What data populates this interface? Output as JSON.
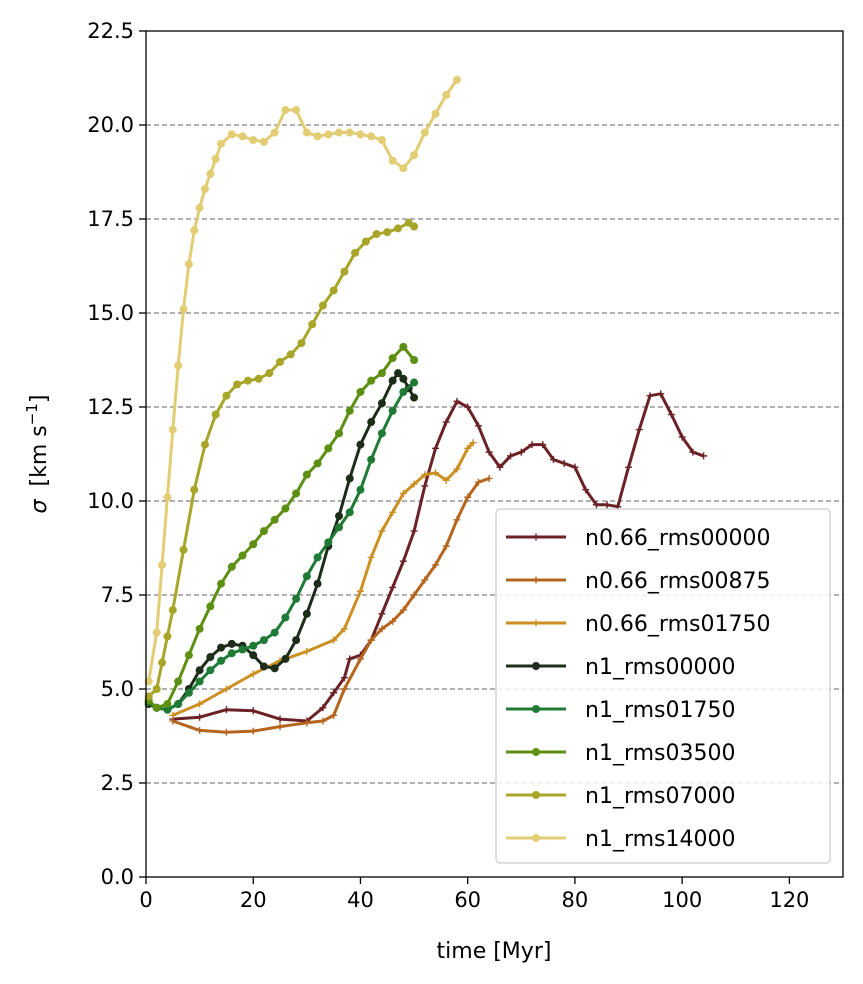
{
  "chart_data": {
    "type": "line",
    "xlabel": "time [Myr]",
    "ylabel_symbol": "σ",
    "ylabel_units": "[km s",
    "ylabel_exp": "−1",
    "ylabel_close": "]",
    "xlim": [
      0,
      130
    ],
    "ylim": [
      0,
      22.5
    ],
    "xticks": [
      0,
      20,
      40,
      60,
      80,
      100,
      120
    ],
    "yticks": [
      0.0,
      2.5,
      5.0,
      7.5,
      10.0,
      12.5,
      15.0,
      17.5,
      20.0,
      22.5
    ],
    "xtick_labels": [
      "0",
      "20",
      "40",
      "60",
      "80",
      "100",
      "120"
    ],
    "ytick_labels": [
      "0.0",
      "2.5",
      "5.0",
      "7.5",
      "10.0",
      "12.5",
      "15.0",
      "17.5",
      "20.0",
      "22.5"
    ],
    "grid": {
      "axis": "y",
      "style": "dashed",
      "color": "#808080"
    },
    "legend_position": "lower right",
    "series": [
      {
        "name": "n0.66_rms00000",
        "color": "#6b2226",
        "marker": "plus",
        "points": [
          [
            5,
            4.2
          ],
          [
            10,
            4.25
          ],
          [
            15,
            4.45
          ],
          [
            20,
            4.42
          ],
          [
            25,
            4.2
          ],
          [
            30,
            4.15
          ],
          [
            33,
            4.5
          ],
          [
            35,
            4.9
          ],
          [
            37,
            5.3
          ],
          [
            38,
            5.8
          ],
          [
            40,
            5.9
          ],
          [
            42,
            6.3
          ],
          [
            44,
            7.0
          ],
          [
            46,
            7.7
          ],
          [
            48,
            8.4
          ],
          [
            50,
            9.2
          ],
          [
            52,
            10.4
          ],
          [
            54,
            11.4
          ],
          [
            56,
            12.1
          ],
          [
            58,
            12.65
          ],
          [
            60,
            12.5
          ],
          [
            62,
            12.0
          ],
          [
            64,
            11.3
          ],
          [
            66,
            10.9
          ],
          [
            68,
            11.2
          ],
          [
            70,
            11.3
          ],
          [
            72,
            11.5
          ],
          [
            74,
            11.5
          ],
          [
            76,
            11.1
          ],
          [
            78,
            11.0
          ],
          [
            80,
            10.9
          ],
          [
            82,
            10.3
          ],
          [
            84,
            9.9
          ],
          [
            86,
            9.9
          ],
          [
            88,
            9.85
          ],
          [
            90,
            10.9
          ],
          [
            92,
            11.9
          ],
          [
            94,
            12.8
          ],
          [
            96,
            12.85
          ],
          [
            98,
            12.3
          ],
          [
            100,
            11.7
          ],
          [
            102,
            11.3
          ],
          [
            104,
            11.2
          ]
        ]
      },
      {
        "name": "n0.66_rms00875",
        "color": "#b5651d",
        "marker": "plus",
        "points": [
          [
            5,
            4.15
          ],
          [
            10,
            3.9
          ],
          [
            15,
            3.85
          ],
          [
            20,
            3.88
          ],
          [
            25,
            4.0
          ],
          [
            30,
            4.1
          ],
          [
            33,
            4.15
          ],
          [
            35,
            4.3
          ],
          [
            37,
            5.0
          ],
          [
            40,
            5.8
          ],
          [
            42,
            6.3
          ],
          [
            44,
            6.6
          ],
          [
            46,
            6.8
          ],
          [
            48,
            7.1
          ],
          [
            50,
            7.5
          ],
          [
            52,
            7.9
          ],
          [
            54,
            8.3
          ],
          [
            56,
            8.8
          ],
          [
            58,
            9.5
          ],
          [
            60,
            10.1
          ],
          [
            62,
            10.5
          ],
          [
            64,
            10.6
          ]
        ]
      },
      {
        "name": "n0.66_rms01750",
        "color": "#cc8f22",
        "marker": "plus",
        "points": [
          [
            5,
            4.3
          ],
          [
            10,
            4.6
          ],
          [
            15,
            5.0
          ],
          [
            20,
            5.4
          ],
          [
            25,
            5.75
          ],
          [
            30,
            6.0
          ],
          [
            35,
            6.3
          ],
          [
            37,
            6.6
          ],
          [
            40,
            7.6
          ],
          [
            42,
            8.5
          ],
          [
            44,
            9.2
          ],
          [
            46,
            9.7
          ],
          [
            48,
            10.2
          ],
          [
            50,
            10.45
          ],
          [
            52,
            10.7
          ],
          [
            54,
            10.75
          ],
          [
            56,
            10.55
          ],
          [
            58,
            10.85
          ],
          [
            60,
            11.4
          ],
          [
            61,
            11.55
          ]
        ]
      },
      {
        "name": "n1_rms00000",
        "color": "#1e2d1a",
        "marker": "dot",
        "points": [
          [
            0.5,
            4.6
          ],
          [
            2,
            4.5
          ],
          [
            4,
            4.45
          ],
          [
            6,
            4.6
          ],
          [
            8,
            5.0
          ],
          [
            10,
            5.5
          ],
          [
            12,
            5.85
          ],
          [
            14,
            6.1
          ],
          [
            16,
            6.2
          ],
          [
            18,
            6.15
          ],
          [
            20,
            5.9
          ],
          [
            22,
            5.6
          ],
          [
            24,
            5.55
          ],
          [
            26,
            5.8
          ],
          [
            28,
            6.3
          ],
          [
            30,
            7.0
          ],
          [
            32,
            7.8
          ],
          [
            34,
            8.8
          ],
          [
            36,
            9.6
          ],
          [
            38,
            10.6
          ],
          [
            40,
            11.5
          ],
          [
            42,
            12.1
          ],
          [
            44,
            12.6
          ],
          [
            46,
            13.2
          ],
          [
            47,
            13.4
          ],
          [
            48,
            13.25
          ],
          [
            49,
            13.0
          ],
          [
            50,
            12.75
          ]
        ]
      },
      {
        "name": "n1_rms01750",
        "color": "#1e7a34",
        "marker": "dot",
        "points": [
          [
            0.5,
            4.65
          ],
          [
            2,
            4.5
          ],
          [
            4,
            4.45
          ],
          [
            6,
            4.6
          ],
          [
            8,
            4.9
          ],
          [
            10,
            5.2
          ],
          [
            12,
            5.5
          ],
          [
            14,
            5.75
          ],
          [
            16,
            5.95
          ],
          [
            18,
            6.05
          ],
          [
            20,
            6.15
          ],
          [
            22,
            6.3
          ],
          [
            24,
            6.5
          ],
          [
            26,
            6.9
          ],
          [
            28,
            7.4
          ],
          [
            30,
            8.0
          ],
          [
            32,
            8.5
          ],
          [
            34,
            8.9
          ],
          [
            36,
            9.3
          ],
          [
            38,
            9.7
          ],
          [
            40,
            10.3
          ],
          [
            42,
            11.1
          ],
          [
            44,
            11.8
          ],
          [
            46,
            12.4
          ],
          [
            48,
            12.9
          ],
          [
            50,
            13.15
          ]
        ]
      },
      {
        "name": "n1_rms03500",
        "color": "#5c8f12",
        "marker": "dot",
        "points": [
          [
            0.5,
            4.7
          ],
          [
            2,
            4.5
          ],
          [
            4,
            4.6
          ],
          [
            6,
            5.2
          ],
          [
            8,
            5.9
          ],
          [
            10,
            6.6
          ],
          [
            12,
            7.2
          ],
          [
            14,
            7.8
          ],
          [
            16,
            8.25
          ],
          [
            18,
            8.55
          ],
          [
            20,
            8.85
          ],
          [
            22,
            9.2
          ],
          [
            24,
            9.5
          ],
          [
            26,
            9.8
          ],
          [
            28,
            10.2
          ],
          [
            30,
            10.7
          ],
          [
            32,
            11.0
          ],
          [
            34,
            11.4
          ],
          [
            36,
            11.8
          ],
          [
            38,
            12.4
          ],
          [
            40,
            12.9
          ],
          [
            42,
            13.2
          ],
          [
            44,
            13.4
          ],
          [
            46,
            13.8
          ],
          [
            48,
            14.1
          ],
          [
            50,
            13.75
          ]
        ]
      },
      {
        "name": "n1_rms07000",
        "color": "#a8a62a",
        "marker": "dot",
        "points": [
          [
            0.5,
            4.8
          ],
          [
            2,
            5.0
          ],
          [
            3,
            5.7
          ],
          [
            4,
            6.4
          ],
          [
            5,
            7.1
          ],
          [
            7,
            8.7
          ],
          [
            9,
            10.3
          ],
          [
            11,
            11.5
          ],
          [
            13,
            12.3
          ],
          [
            15,
            12.8
          ],
          [
            17,
            13.1
          ],
          [
            19,
            13.2
          ],
          [
            21,
            13.25
          ],
          [
            23,
            13.4
          ],
          [
            25,
            13.7
          ],
          [
            27,
            13.9
          ],
          [
            29,
            14.2
          ],
          [
            31,
            14.7
          ],
          [
            33,
            15.2
          ],
          [
            35,
            15.6
          ],
          [
            37,
            16.1
          ],
          [
            39,
            16.6
          ],
          [
            41,
            16.9
          ],
          [
            43,
            17.1
          ],
          [
            45,
            17.15
          ],
          [
            47,
            17.25
          ],
          [
            49,
            17.4
          ],
          [
            50,
            17.3
          ]
        ]
      },
      {
        "name": "n1_rms14000",
        "color": "#e2cc74",
        "marker": "dot",
        "points": [
          [
            0.5,
            5.2
          ],
          [
            2,
            6.5
          ],
          [
            3,
            8.3
          ],
          [
            4,
            10.1
          ],
          [
            5,
            11.9
          ],
          [
            6,
            13.6
          ],
          [
            7,
            15.1
          ],
          [
            8,
            16.3
          ],
          [
            9,
            17.2
          ],
          [
            10,
            17.8
          ],
          [
            11,
            18.3
          ],
          [
            12,
            18.7
          ],
          [
            13,
            19.1
          ],
          [
            14,
            19.5
          ],
          [
            16,
            19.75
          ],
          [
            18,
            19.7
          ],
          [
            20,
            19.6
          ],
          [
            22,
            19.55
          ],
          [
            24,
            19.8
          ],
          [
            26,
            20.4
          ],
          [
            28,
            20.4
          ],
          [
            30,
            19.8
          ],
          [
            32,
            19.7
          ],
          [
            34,
            19.75
          ],
          [
            36,
            19.8
          ],
          [
            38,
            19.8
          ],
          [
            40,
            19.75
          ],
          [
            42,
            19.7
          ],
          [
            44,
            19.6
          ],
          [
            46,
            19.05
          ],
          [
            48,
            18.85
          ],
          [
            50,
            19.2
          ],
          [
            52,
            19.8
          ],
          [
            54,
            20.3
          ],
          [
            56,
            20.8
          ],
          [
            58,
            21.2
          ]
        ]
      }
    ]
  }
}
